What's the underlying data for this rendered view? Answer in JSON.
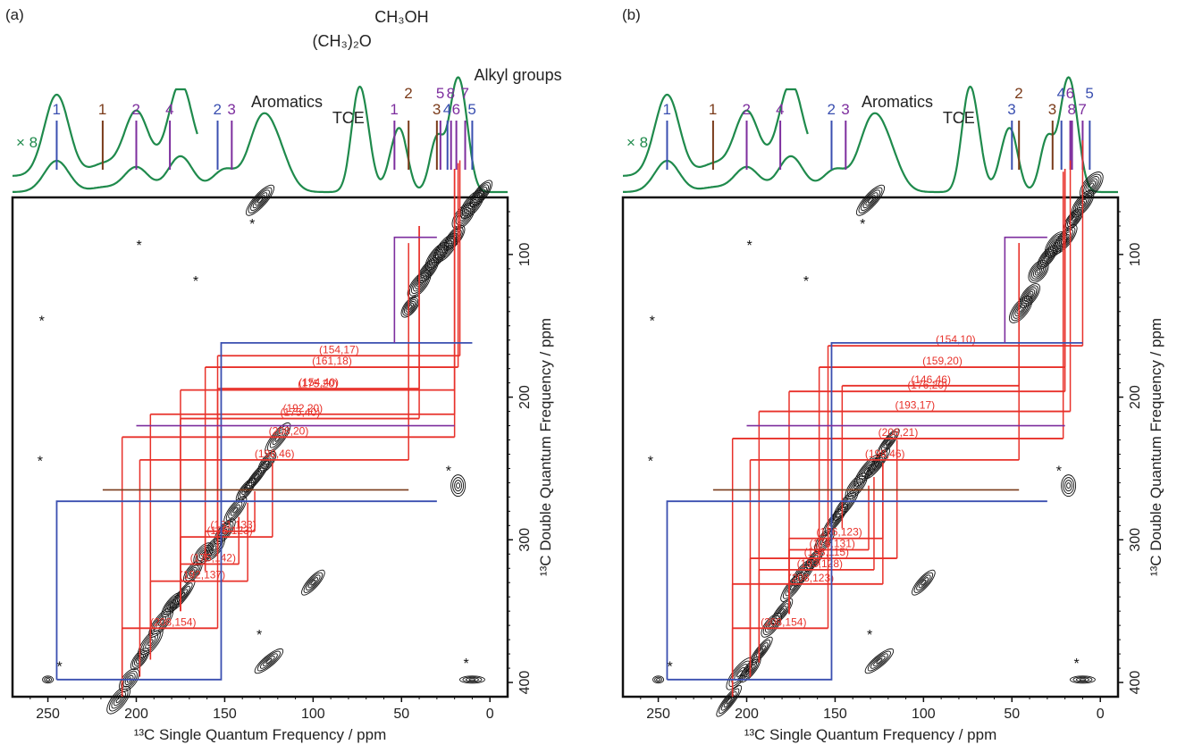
{
  "colors": {
    "spectrum": "#1f8a4c",
    "blue": "#3a4fb0",
    "brown": "#7a3b1a",
    "purple": "#7d2e9e",
    "red": "#e8312a",
    "contour": "#111111"
  },
  "chart_data": [
    {
      "type": "heatmap",
      "panel_label": "(a)",
      "xlabel": "¹³C Single Quantum Frequency / ppm",
      "ylabel": "¹³C Double Quantum Frequency / ppm",
      "xlim": [
        270,
        -10
      ],
      "ylim": [
        410,
        60
      ],
      "x_ticks": [
        250,
        200,
        150,
        100,
        50,
        0
      ],
      "y_ticks": [
        100,
        200,
        300,
        400
      ],
      "top_spectrum_multiplier": "× 8",
      "group_labels": [
        {
          "text": "Aromatics",
          "x": 130
        },
        {
          "text": "TCE",
          "x": 75
        },
        {
          "text": "(CH₃)₂O",
          "x": 60
        },
        {
          "text": "CH₃OH",
          "x": 50
        },
        {
          "text": "Alkyl groups",
          "x": 15
        }
      ],
      "peak_markers": [
        {
          "label": "1",
          "x": 245,
          "color": "blue"
        },
        {
          "label": "1",
          "x": 219,
          "color": "brown"
        },
        {
          "label": "2",
          "x": 200,
          "color": "purple"
        },
        {
          "label": "4",
          "x": 181,
          "color": "purple"
        },
        {
          "label": "2",
          "x": 154,
          "color": "blue"
        },
        {
          "label": "3",
          "x": 146,
          "color": "purple"
        },
        {
          "label": "1",
          "x": 54,
          "color": "purple"
        },
        {
          "label": "2",
          "x": 46,
          "color": "brown"
        },
        {
          "label": "3",
          "x": 30,
          "color": "brown"
        },
        {
          "label": "5",
          "x": 28,
          "color": "purple"
        },
        {
          "label": "4",
          "x": 24,
          "color": "blue"
        },
        {
          "label": "8",
          "x": 22,
          "color": "purple"
        },
        {
          "label": "6",
          "x": 19,
          "color": "purple"
        },
        {
          "label": "7",
          "x": 14,
          "color": "purple"
        },
        {
          "label": "5",
          "x": 10,
          "color": "blue"
        }
      ],
      "correlations": [
        {
          "label": "(154,17)",
          "x1": 154,
          "x2": 17
        },
        {
          "label": "(161,18)",
          "x1": 161,
          "x2": 18
        },
        {
          "label": "(175,20)",
          "x1": 175,
          "x2": 20
        },
        {
          "label": "(154,40)",
          "x1": 154,
          "x2": 40
        },
        {
          "label": "(175,40)",
          "x1": 175,
          "x2": 40
        },
        {
          "label": "(208,20)",
          "x1": 208,
          "x2": 20
        },
        {
          "label": "(192,20)",
          "x1": 192,
          "x2": 20
        },
        {
          "label": "(198,46)",
          "x1": 198,
          "x2": 46
        },
        {
          "label": "(161,133)",
          "x1": 161,
          "x2": 133
        },
        {
          "label": "(175,123)",
          "x1": 175,
          "x2": 123
        },
        {
          "label": "(175,142)",
          "x1": 175,
          "x2": 142
        },
        {
          "label": "(192,137)",
          "x1": 192,
          "x2": 137
        },
        {
          "label": "(208,154)",
          "x1": 208,
          "x2": 154
        }
      ],
      "spinning_sidebands": "*"
    },
    {
      "type": "heatmap",
      "panel_label": "(b)",
      "xlabel": "¹³C Single Quantum Frequency / ppm",
      "ylabel": "¹³C Double Quantum Frequency / ppm",
      "xlim": [
        270,
        -10
      ],
      "ylim": [
        410,
        60
      ],
      "x_ticks": [
        250,
        200,
        150,
        100,
        50,
        0
      ],
      "y_ticks": [
        100,
        200,
        300,
        400
      ],
      "top_spectrum_multiplier": "× 8",
      "group_labels": [
        {
          "text": "Aromatics",
          "x": 130
        },
        {
          "text": "TCE",
          "x": 75
        }
      ],
      "peak_markers": [
        {
          "label": "1",
          "x": 245,
          "color": "blue"
        },
        {
          "label": "1",
          "x": 219,
          "color": "brown"
        },
        {
          "label": "2",
          "x": 200,
          "color": "purple"
        },
        {
          "label": "4",
          "x": 181,
          "color": "purple"
        },
        {
          "label": "2",
          "x": 152,
          "color": "blue"
        },
        {
          "label": "3",
          "x": 144,
          "color": "purple"
        },
        {
          "label": "3",
          "x": 50,
          "color": "blue"
        },
        {
          "label": "2",
          "x": 46,
          "color": "brown"
        },
        {
          "label": "3",
          "x": 27,
          "color": "brown"
        },
        {
          "label": "4",
          "x": 22,
          "color": "blue"
        },
        {
          "label": "8",
          "x": 16,
          "color": "purple"
        },
        {
          "label": "6",
          "x": 17,
          "color": "purple"
        },
        {
          "label": "7",
          "x": 10,
          "color": "purple"
        },
        {
          "label": "5",
          "x": 6,
          "color": "blue"
        }
      ],
      "correlations": [
        {
          "label": "(146,46)",
          "x1": 146,
          "x2": 46
        },
        {
          "label": "(176,20)",
          "x1": 176,
          "x2": 20
        },
        {
          "label": "(193,17)",
          "x1": 193,
          "x2": 17
        },
        {
          "label": "(208,21)",
          "x1": 208,
          "x2": 21
        },
        {
          "label": "(159,20)",
          "x1": 159,
          "x2": 20
        },
        {
          "label": "(154,10)",
          "x1": 154,
          "x2": 10
        },
        {
          "label": "(198,46)",
          "x1": 198,
          "x2": 46
        },
        {
          "label": "(176,123)",
          "x1": 176,
          "x2": 123
        },
        {
          "label": "(176,131)",
          "x1": 176,
          "x2": 131
        },
        {
          "label": "(198,115)",
          "x1": 198,
          "x2": 115
        },
        {
          "label": "(193,128)",
          "x1": 193,
          "x2": 128
        },
        {
          "label": "(208,123)",
          "x1": 208,
          "x2": 123
        },
        {
          "label": "(208,154)",
          "x1": 208,
          "x2": 154
        }
      ],
      "spinning_sidebands": "*"
    }
  ]
}
